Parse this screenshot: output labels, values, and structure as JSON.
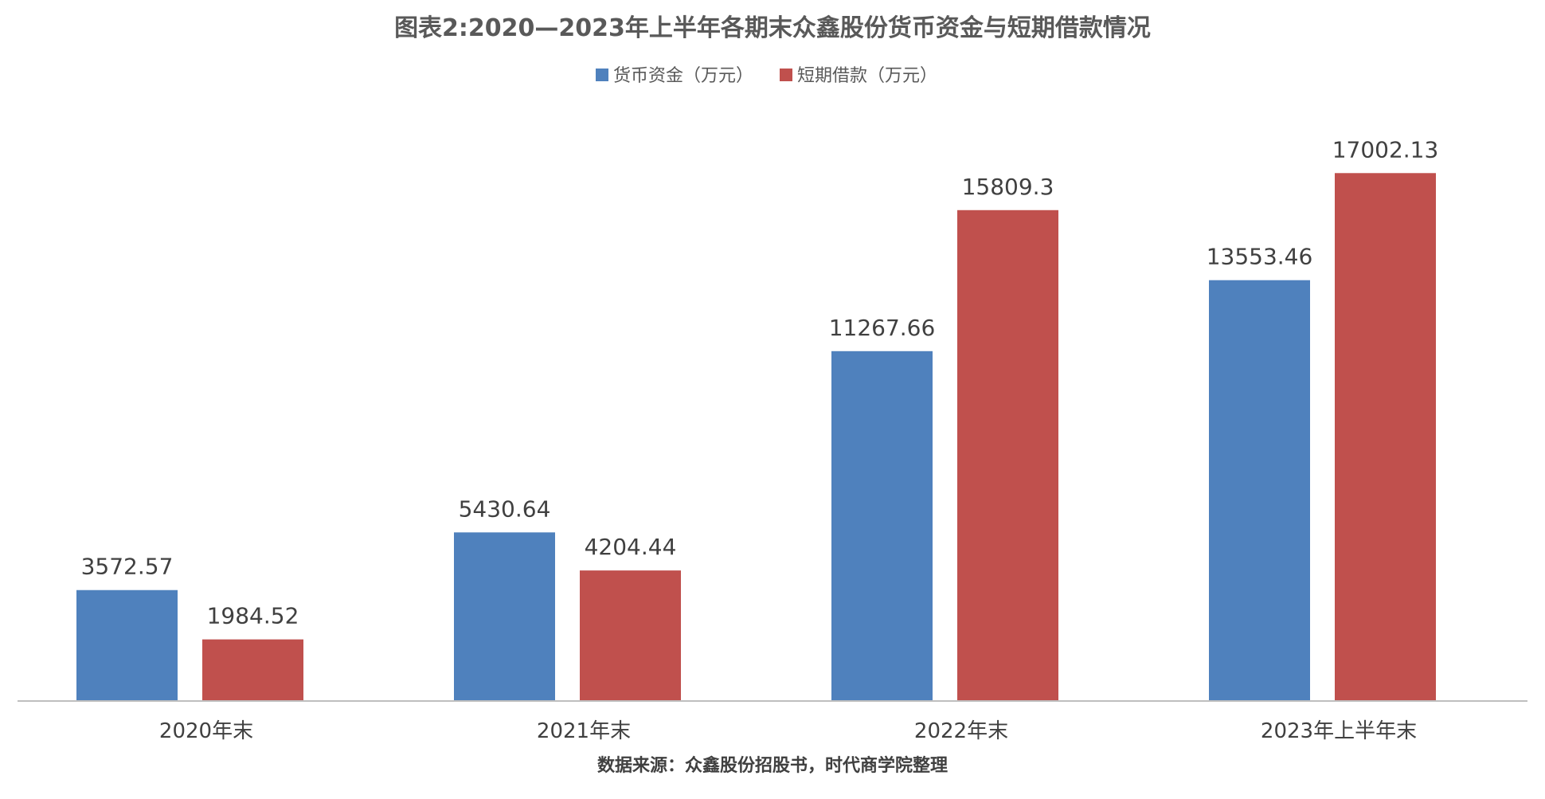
{
  "chart_data": {
    "type": "bar",
    "title": "图表2:2020—2023年上半年各期末众鑫股份货币资金与短期借款情况",
    "categories": [
      "2020年末",
      "2021年末",
      "2022年末",
      "2023年上半年末"
    ],
    "series": [
      {
        "name": "货币资金（万元）",
        "color": "#4f81bd",
        "values": [
          3572.57,
          5430.64,
          11267.66,
          13553.46
        ],
        "labels": [
          "3572.57",
          "5430.64",
          "11267.66",
          "13553.46"
        ]
      },
      {
        "name": "短期借款（万元）",
        "color": "#c0504d",
        "values": [
          1984.52,
          4204.44,
          15809.3,
          17002.13
        ],
        "labels": [
          "1984.52",
          "4204.44",
          "15809.3",
          "17002.13"
        ]
      }
    ],
    "ylim": [
      0,
      18600
    ],
    "grid": false,
    "legend_position": "top-center",
    "source": "数据来源：众鑫股份招股书，时代商学院整理"
  }
}
